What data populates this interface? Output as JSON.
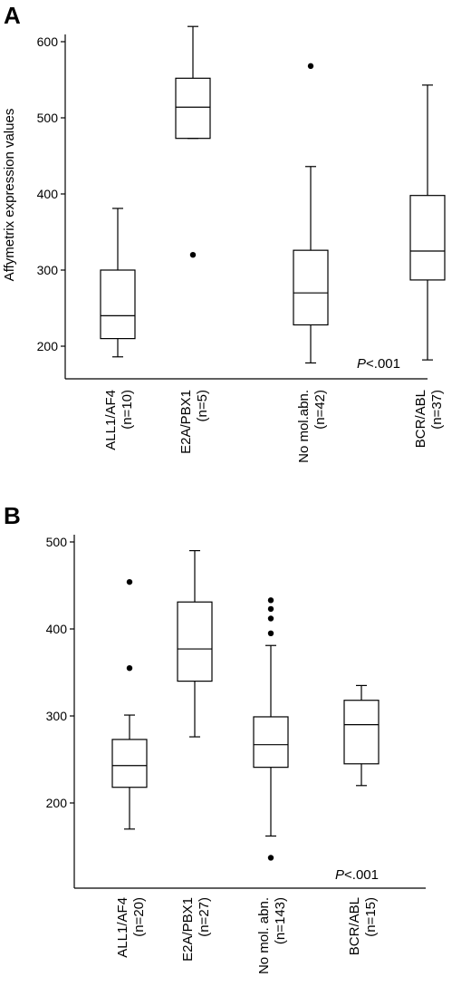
{
  "chart_data": [
    {
      "type": "box",
      "panel_label": "A",
      "ylabel": "Affymetrix expression values",
      "yticks": [
        200,
        300,
        400,
        500,
        600
      ],
      "ylim": [
        170,
        640
      ],
      "annotation": {
        "italic": "P",
        "rest": "<.001"
      },
      "categories": [
        {
          "lines": [
            "ALL1/AF4",
            "(n=10)"
          ],
          "min": 186,
          "q1": 210,
          "median": 240,
          "q3": 300,
          "max": 381,
          "outliers": []
        },
        {
          "lines": [
            "E2A/PBX1",
            "(n=5)"
          ],
          "min": 473,
          "q1": 473,
          "median": 514,
          "q3": 552,
          "max": 620,
          "outliers": [
            320
          ]
        },
        {
          "lines": [
            "No mol.abn.",
            "(n=42)"
          ],
          "min": 178,
          "q1": 228,
          "median": 270,
          "q3": 326,
          "max": 436,
          "outliers": [
            568
          ]
        },
        {
          "lines": [
            "BCR/ABL",
            "(n=37)"
          ],
          "min": 182,
          "q1": 287,
          "median": 325,
          "q3": 398,
          "max": 543,
          "outliers": []
        }
      ]
    },
    {
      "type": "box",
      "panel_label": "B",
      "ylabel": "",
      "yticks": [
        200,
        300,
        400,
        500
      ],
      "ylim": [
        130,
        510
      ],
      "annotation": {
        "italic": "P",
        "rest": "<.001"
      },
      "categories": [
        {
          "lines": [
            "ALL1/AF4",
            "(n=20)"
          ],
          "min": 170,
          "q1": 218,
          "median": 243,
          "q3": 273,
          "max": 301,
          "outliers": [
            355,
            454
          ]
        },
        {
          "lines": [
            "E2A/PBX1",
            "(n=27)"
          ],
          "min": 276,
          "q1": 340,
          "median": 377,
          "q3": 431,
          "max": 490,
          "outliers": []
        },
        {
          "lines": [
            "No mol. abn.",
            "(n=143)"
          ],
          "min": 162,
          "q1": 241,
          "median": 267,
          "q3": 299,
          "max": 381,
          "outliers": [
            137,
            395,
            412,
            423,
            433
          ]
        },
        {
          "lines": [
            "BCR/ABL",
            "(n=15)"
          ],
          "min": 220,
          "q1": 245,
          "median": 290,
          "q3": 318,
          "max": 335,
          "outliers": []
        }
      ]
    }
  ]
}
